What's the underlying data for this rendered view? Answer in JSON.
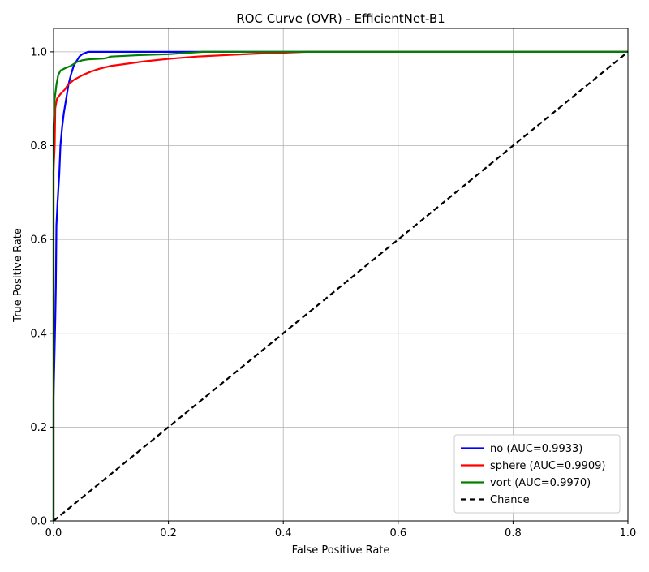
{
  "chart_data": {
    "type": "line",
    "title": "ROC Curve (OVR) - EfficientNet-B1",
    "xlabel": "False Positive Rate",
    "ylabel": "True Positive Rate",
    "xlim": [
      0.0,
      1.0
    ],
    "ylim": [
      0.0,
      1.05
    ],
    "x_ticks": [
      "0.0",
      "0.2",
      "0.4",
      "0.6",
      "0.8",
      "1.0"
    ],
    "y_ticks": [
      "0.0",
      "0.2",
      "0.4",
      "0.6",
      "0.8",
      "1.0"
    ],
    "grid": true,
    "legend_position": "bottom-right",
    "series": [
      {
        "name": "no (AUC=0.9933)",
        "color": "#0000ff",
        "style": "solid",
        "points": [
          [
            0.0,
            0.0
          ],
          [
            0.0,
            0.26
          ],
          [
            0.003,
            0.43
          ],
          [
            0.004,
            0.5
          ],
          [
            0.005,
            0.63
          ],
          [
            0.007,
            0.68
          ],
          [
            0.01,
            0.74
          ],
          [
            0.012,
            0.8
          ],
          [
            0.015,
            0.84
          ],
          [
            0.018,
            0.87
          ],
          [
            0.022,
            0.9
          ],
          [
            0.026,
            0.93
          ],
          [
            0.03,
            0.95
          ],
          [
            0.035,
            0.97
          ],
          [
            0.04,
            0.98
          ],
          [
            0.045,
            0.99
          ],
          [
            0.05,
            0.995
          ],
          [
            0.06,
            1.0
          ],
          [
            1.0,
            1.0
          ]
        ]
      },
      {
        "name": "sphere (AUC=0.9909)",
        "color": "#ff0000",
        "style": "solid",
        "points": [
          [
            0.0,
            0.0
          ],
          [
            0.0,
            0.745
          ],
          [
            0.002,
            0.8
          ],
          [
            0.003,
            0.88
          ],
          [
            0.006,
            0.9
          ],
          [
            0.012,
            0.91
          ],
          [
            0.02,
            0.92
          ],
          [
            0.025,
            0.93
          ],
          [
            0.035,
            0.94
          ],
          [
            0.05,
            0.95
          ],
          [
            0.065,
            0.958
          ],
          [
            0.08,
            0.964
          ],
          [
            0.1,
            0.97
          ],
          [
            0.13,
            0.975
          ],
          [
            0.16,
            0.98
          ],
          [
            0.2,
            0.985
          ],
          [
            0.25,
            0.99
          ],
          [
            0.3,
            0.993
          ],
          [
            0.35,
            0.996
          ],
          [
            0.44,
            1.0
          ],
          [
            1.0,
            1.0
          ]
        ]
      },
      {
        "name": "vort (AUC=0.9970)",
        "color": "#008000",
        "style": "solid",
        "points": [
          [
            0.0,
            0.0
          ],
          [
            0.0,
            0.84
          ],
          [
            0.002,
            0.9
          ],
          [
            0.005,
            0.93
          ],
          [
            0.008,
            0.95
          ],
          [
            0.012,
            0.96
          ],
          [
            0.02,
            0.965
          ],
          [
            0.03,
            0.97
          ],
          [
            0.04,
            0.978
          ],
          [
            0.05,
            0.982
          ],
          [
            0.06,
            0.984
          ],
          [
            0.09,
            0.986
          ],
          [
            0.1,
            0.99
          ],
          [
            0.15,
            0.993
          ],
          [
            0.2,
            0.995
          ],
          [
            0.26,
            1.0
          ],
          [
            1.0,
            1.0
          ]
        ]
      },
      {
        "name": "Chance",
        "color": "#000000",
        "style": "dashed",
        "points": [
          [
            0.0,
            0.0
          ],
          [
            1.0,
            1.0
          ]
        ]
      }
    ]
  }
}
